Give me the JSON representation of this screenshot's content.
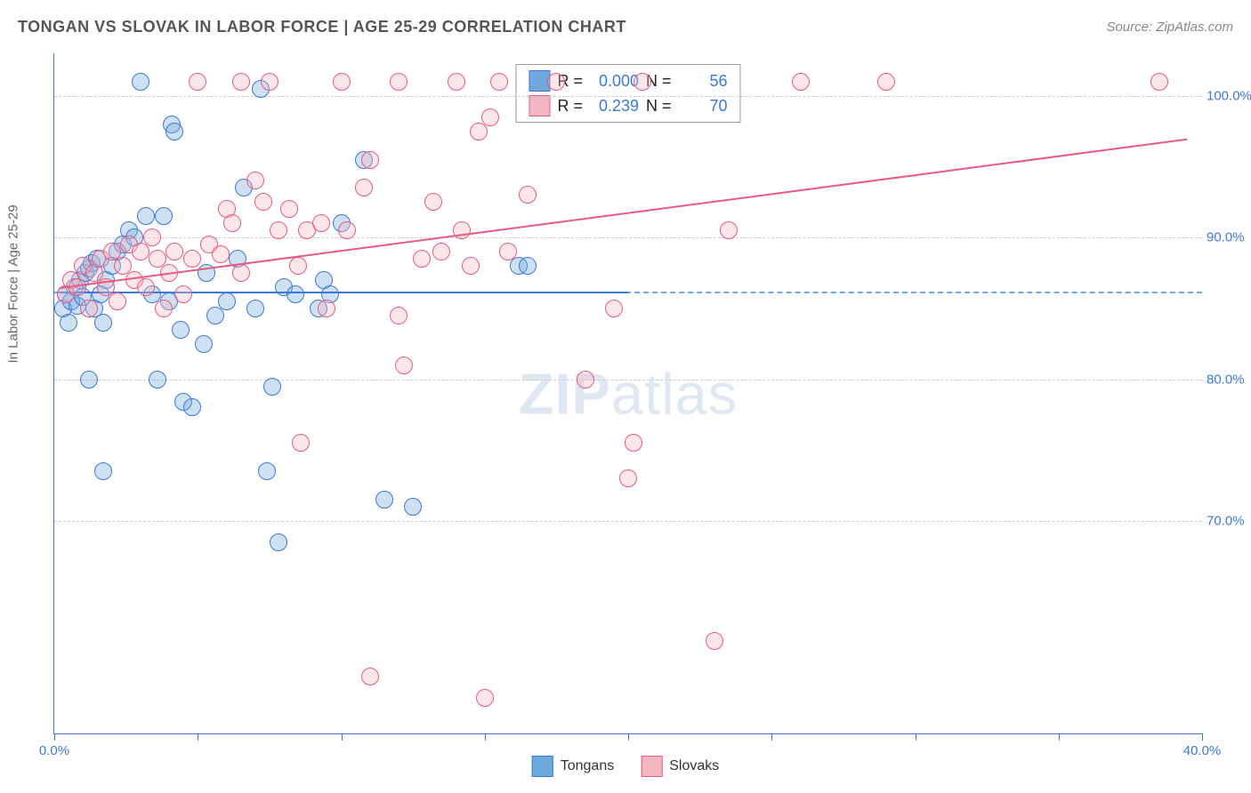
{
  "header": {
    "title": "TONGAN VS SLOVAK IN LABOR FORCE | AGE 25-29 CORRELATION CHART",
    "source": "Source: ZipAtlas.com"
  },
  "chart": {
    "type": "scatter",
    "y_axis_label": "In Labor Force | Age 25-29",
    "watermark_bold": "ZIP",
    "watermark_rest": "atlas",
    "background_color": "#ffffff",
    "grid_color": "#cccccc",
    "axis_color": "#3b78d8",
    "xlim": [
      0,
      40
    ],
    "ylim": [
      55,
      103
    ],
    "x_ticks": [
      0,
      5,
      10,
      15,
      20,
      25,
      30,
      35,
      40
    ],
    "x_tick_labels": {
      "0": "0.0%",
      "40": "40.0%"
    },
    "y_gridlines": [
      70,
      80,
      90,
      100
    ],
    "y_tick_labels": {
      "70": "70.0%",
      "80": "80.0%",
      "90": "90.0%",
      "100": "100.0%"
    },
    "marker_radius": 10,
    "marker_border_width": 1.2,
    "marker_fill_opacity": 0.35,
    "line_width": 2,
    "series": [
      {
        "id": "tongans",
        "name": "Tongans",
        "fill_color": "#6fa8dc",
        "stroke_color": "#3b78d8",
        "R": "0.000",
        "N": "56",
        "regression": {
          "x1": 0.2,
          "y1": 86.2,
          "x2": 20.0,
          "y2": 86.2
        },
        "extension_y": 86.2,
        "points": [
          [
            0.3,
            85.0
          ],
          [
            0.4,
            86.0
          ],
          [
            0.5,
            84.0
          ],
          [
            0.6,
            85.5
          ],
          [
            0.7,
            86.5
          ],
          [
            0.8,
            85.2
          ],
          [
            0.9,
            87.0
          ],
          [
            1.0,
            85.8
          ],
          [
            1.1,
            87.5
          ],
          [
            1.2,
            87.8
          ],
          [
            1.3,
            88.2
          ],
          [
            1.4,
            85.0
          ],
          [
            1.5,
            88.5
          ],
          [
            1.6,
            86.0
          ],
          [
            1.7,
            84.0
          ],
          [
            1.8,
            87.0
          ],
          [
            1.2,
            80.0
          ],
          [
            2.0,
            88.0
          ],
          [
            2.2,
            89.0
          ],
          [
            2.4,
            89.5
          ],
          [
            2.6,
            90.5
          ],
          [
            2.8,
            90.0
          ],
          [
            3.0,
            101.0
          ],
          [
            3.2,
            91.5
          ],
          [
            3.4,
            86.0
          ],
          [
            3.6,
            80.0
          ],
          [
            3.8,
            91.5
          ],
          [
            4.0,
            85.5
          ],
          [
            4.1,
            98.0
          ],
          [
            4.2,
            97.5
          ],
          [
            4.4,
            83.5
          ],
          [
            4.5,
            78.4
          ],
          [
            4.8,
            78.0
          ],
          [
            1.7,
            73.5
          ],
          [
            5.2,
            82.5
          ],
          [
            5.3,
            87.5
          ],
          [
            5.6,
            84.5
          ],
          [
            6.0,
            85.5
          ],
          [
            6.4,
            88.5
          ],
          [
            6.6,
            93.5
          ],
          [
            7.0,
            85.0
          ],
          [
            7.2,
            100.5
          ],
          [
            7.4,
            73.5
          ],
          [
            7.6,
            79.5
          ],
          [
            7.8,
            68.5
          ],
          [
            8.0,
            86.5
          ],
          [
            8.4,
            86.0
          ],
          [
            9.2,
            85.0
          ],
          [
            9.4,
            87.0
          ],
          [
            9.6,
            86.0
          ],
          [
            10.0,
            91.0
          ],
          [
            10.8,
            95.5
          ],
          [
            11.5,
            71.5
          ],
          [
            12.5,
            71.0
          ],
          [
            16.2,
            88.0
          ],
          [
            16.5,
            88.0
          ]
        ]
      },
      {
        "id": "slovaks",
        "name": "Slovaks",
        "fill_color": "#f4b6c2",
        "stroke_color": "#e85b81",
        "R": "0.239",
        "N": "70",
        "regression": {
          "x1": 0.2,
          "y1": 86.5,
          "x2": 39.5,
          "y2": 97.0
        },
        "points": [
          [
            0.4,
            86.0
          ],
          [
            0.6,
            87.0
          ],
          [
            0.8,
            86.5
          ],
          [
            1.0,
            88.0
          ],
          [
            1.2,
            85.0
          ],
          [
            1.4,
            87.5
          ],
          [
            1.6,
            88.5
          ],
          [
            1.8,
            86.5
          ],
          [
            2.0,
            89.0
          ],
          [
            2.2,
            85.5
          ],
          [
            2.4,
            88.0
          ],
          [
            2.6,
            89.5
          ],
          [
            2.8,
            87.0
          ],
          [
            3.0,
            89.0
          ],
          [
            3.2,
            86.5
          ],
          [
            3.4,
            90.0
          ],
          [
            3.6,
            88.5
          ],
          [
            3.8,
            85.0
          ],
          [
            4.0,
            87.5
          ],
          [
            4.2,
            89.0
          ],
          [
            4.5,
            86.0
          ],
          [
            4.8,
            88.5
          ],
          [
            5.0,
            101.0
          ],
          [
            5.4,
            89.5
          ],
          [
            5.8,
            88.8
          ],
          [
            6.0,
            92.0
          ],
          [
            6.2,
            91.0
          ],
          [
            6.5,
            87.5
          ],
          [
            6.5,
            101.0
          ],
          [
            7.0,
            94.0
          ],
          [
            7.3,
            92.5
          ],
          [
            7.5,
            101.0
          ],
          [
            7.8,
            90.5
          ],
          [
            8.2,
            92.0
          ],
          [
            8.5,
            88.0
          ],
          [
            8.8,
            90.5
          ],
          [
            8.6,
            75.5
          ],
          [
            9.3,
            91.0
          ],
          [
            9.5,
            85.0
          ],
          [
            10.2,
            90.5
          ],
          [
            10.0,
            101.0
          ],
          [
            10.8,
            93.5
          ],
          [
            11.0,
            95.5
          ],
          [
            11.0,
            59.0
          ],
          [
            12.0,
            84.5
          ],
          [
            12.0,
            101.0
          ],
          [
            12.2,
            81.0
          ],
          [
            12.8,
            88.5
          ],
          [
            13.2,
            92.5
          ],
          [
            13.5,
            89.0
          ],
          [
            14.0,
            101.0
          ],
          [
            14.2,
            90.5
          ],
          [
            14.5,
            88.0
          ],
          [
            14.8,
            97.5
          ],
          [
            15.2,
            98.5
          ],
          [
            15.0,
            57.5
          ],
          [
            15.5,
            101.0
          ],
          [
            15.8,
            89.0
          ],
          [
            16.5,
            93.0
          ],
          [
            17.5,
            101.0
          ],
          [
            18.5,
            80.0
          ],
          [
            19.5,
            85.0
          ],
          [
            20.0,
            73.0
          ],
          [
            20.2,
            75.5
          ],
          [
            20.5,
            101.0
          ],
          [
            23.0,
            61.5
          ],
          [
            23.5,
            90.5
          ],
          [
            26.0,
            101.0
          ],
          [
            29.0,
            101.0
          ],
          [
            38.5,
            101.0
          ]
        ]
      }
    ],
    "legend_top": {
      "r_label": "R =",
      "n_label": "N ="
    },
    "legend_bottom": [
      {
        "series": "tongans"
      },
      {
        "series": "slovaks"
      }
    ]
  }
}
